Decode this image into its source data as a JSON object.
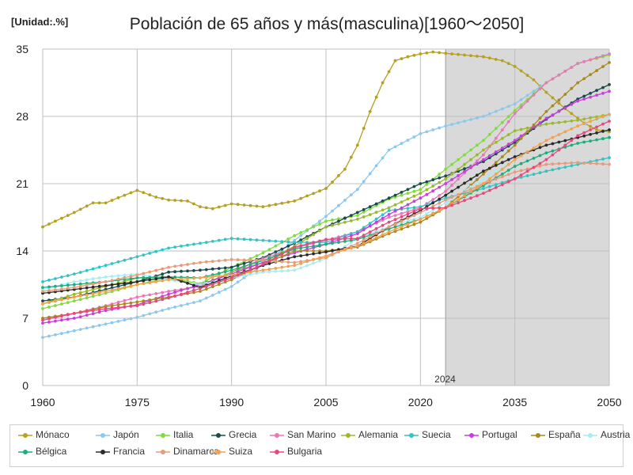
{
  "chart_data": {
    "type": "line",
    "title": "Población de 65 años y más(masculina)[1960〜2050]",
    "unit_label": "[Unidad:.%]",
    "xlabel": "",
    "ylabel": "",
    "xlim": [
      1960,
      2050
    ],
    "ylim": [
      0,
      35
    ],
    "x_ticks": [
      1960,
      1975,
      1990,
      2005,
      2020,
      2035,
      2050
    ],
    "y_ticks": [
      0,
      7,
      14,
      21,
      28,
      35
    ],
    "projection_start": 2024,
    "projection_label": "2024",
    "series": [
      {
        "name": "Mónaco",
        "color": "#b5a020",
        "points": [
          [
            1960,
            16.5
          ],
          [
            1965,
            18
          ],
          [
            1968,
            19
          ],
          [
            1970,
            19
          ],
          [
            1973,
            19.8
          ],
          [
            1975,
            20.3
          ],
          [
            1978,
            19.6
          ],
          [
            1980,
            19.3
          ],
          [
            1983,
            19.2
          ],
          [
            1985,
            18.6
          ],
          [
            1987,
            18.4
          ],
          [
            1990,
            18.9
          ],
          [
            1995,
            18.6
          ],
          [
            2000,
            19.2
          ],
          [
            2005,
            20.5
          ],
          [
            2008,
            22.5
          ],
          [
            2010,
            25
          ],
          [
            2012,
            28.5
          ],
          [
            2014,
            31.5
          ],
          [
            2016,
            33.8
          ],
          [
            2018,
            34.2
          ],
          [
            2020,
            34.5
          ],
          [
            2022,
            34.7
          ],
          [
            2025,
            34.5
          ],
          [
            2030,
            34.2
          ],
          [
            2033,
            33.8
          ],
          [
            2035,
            33.2
          ],
          [
            2038,
            31.8
          ],
          [
            2040,
            30.5
          ],
          [
            2043,
            28.8
          ],
          [
            2046,
            27.3
          ],
          [
            2048,
            26.6
          ],
          [
            2050,
            26.4
          ]
        ]
      },
      {
        "name": "Japón",
        "color": "#8cc8ee",
        "points": [
          [
            1960,
            5
          ],
          [
            1965,
            5.7
          ],
          [
            1970,
            6.4
          ],
          [
            1975,
            7.1
          ],
          [
            1980,
            8
          ],
          [
            1985,
            8.8
          ],
          [
            1990,
            10.3
          ],
          [
            1995,
            12.6
          ],
          [
            2000,
            15.1
          ],
          [
            2005,
            17.6
          ],
          [
            2010,
            20.4
          ],
          [
            2015,
            24.5
          ],
          [
            2020,
            26.2
          ],
          [
            2024,
            27
          ],
          [
            2030,
            28
          ],
          [
            2035,
            29.3
          ],
          [
            2040,
            31.5
          ],
          [
            2045,
            33.5
          ],
          [
            2050,
            34.5
          ]
        ]
      },
      {
        "name": "Italia",
        "color": "#7edc3c",
        "points": [
          [
            1960,
            8
          ],
          [
            1965,
            8.8
          ],
          [
            1970,
            9.6
          ],
          [
            1975,
            10.5
          ],
          [
            1980,
            11.2
          ],
          [
            1985,
            10.6
          ],
          [
            1990,
            12.3
          ],
          [
            1995,
            13.8
          ],
          [
            2000,
            15.6
          ],
          [
            2005,
            17.1
          ],
          [
            2010,
            17.7
          ],
          [
            2015,
            19.4
          ],
          [
            2020,
            20.4
          ],
          [
            2024,
            22.5
          ],
          [
            2030,
            25.5
          ],
          [
            2035,
            28.6
          ],
          [
            2040,
            31.5
          ],
          [
            2045,
            33.5
          ],
          [
            2050,
            34.4
          ]
        ]
      },
      {
        "name": "Grecia",
        "color": "#1a4a4a",
        "points": [
          [
            1960,
            8.8
          ],
          [
            1965,
            9.2
          ],
          [
            1970,
            10
          ],
          [
            1975,
            10.8
          ],
          [
            1980,
            11.8
          ],
          [
            1985,
            12
          ],
          [
            1990,
            12.3
          ],
          [
            1995,
            13.3
          ],
          [
            2000,
            14.8
          ],
          [
            2005,
            16.5
          ],
          [
            2010,
            18
          ],
          [
            2015,
            19.5
          ],
          [
            2020,
            21
          ],
          [
            2024,
            21.8
          ],
          [
            2030,
            23.3
          ],
          [
            2035,
            25.3
          ],
          [
            2040,
            27.7
          ],
          [
            2045,
            29.8
          ],
          [
            2050,
            31.3
          ]
        ]
      },
      {
        "name": "San Marino",
        "color": "#e67ab8",
        "points": [
          [
            1960,
            7
          ],
          [
            1965,
            7.5
          ],
          [
            1970,
            8.3
          ],
          [
            1975,
            9.2
          ],
          [
            1980,
            9.8
          ],
          [
            1985,
            10.3
          ],
          [
            1990,
            11.8
          ],
          [
            1995,
            13.2
          ],
          [
            2000,
            14.3
          ],
          [
            2005,
            15.1
          ],
          [
            2010,
            16
          ],
          [
            2015,
            17.5
          ],
          [
            2020,
            18.5
          ],
          [
            2024,
            20.2
          ],
          [
            2030,
            24
          ],
          [
            2035,
            28.3
          ],
          [
            2040,
            31.5
          ],
          [
            2045,
            33.5
          ],
          [
            2050,
            34.5
          ]
        ]
      },
      {
        "name": "Alemania",
        "color": "#9cb830",
        "points": [
          [
            1960,
            8.5
          ],
          [
            1965,
            9.5
          ],
          [
            1970,
            10.3
          ],
          [
            1975,
            11.2
          ],
          [
            1980,
            11.3
          ],
          [
            1985,
            10.4
          ],
          [
            1990,
            11.8
          ],
          [
            1995,
            12.8
          ],
          [
            2000,
            14.5
          ],
          [
            2005,
            16.5
          ],
          [
            2010,
            17.3
          ],
          [
            2015,
            18.5
          ],
          [
            2020,
            20
          ],
          [
            2024,
            21.5
          ],
          [
            2030,
            24.5
          ],
          [
            2035,
            26.5
          ],
          [
            2040,
            27.2
          ],
          [
            2045,
            27.6
          ],
          [
            2050,
            28.2
          ]
        ]
      },
      {
        "name": "Suecia",
        "color": "#30c4c4",
        "points": [
          [
            1960,
            10.8
          ],
          [
            1965,
            11.6
          ],
          [
            1970,
            12.5
          ],
          [
            1975,
            13.4
          ],
          [
            1980,
            14.3
          ],
          [
            1985,
            14.8
          ],
          [
            1990,
            15.3
          ],
          [
            1995,
            15.1
          ],
          [
            2000,
            14.9
          ],
          [
            2005,
            14.9
          ],
          [
            2010,
            16
          ],
          [
            2015,
            18.2
          ],
          [
            2020,
            18.6
          ],
          [
            2024,
            19.5
          ],
          [
            2030,
            20.5
          ],
          [
            2035,
            21.5
          ],
          [
            2040,
            22.3
          ],
          [
            2045,
            23
          ],
          [
            2050,
            23.7
          ]
        ]
      },
      {
        "name": "Portugal",
        "color": "#c83ce0",
        "points": [
          [
            1960,
            6.5
          ],
          [
            1965,
            7
          ],
          [
            1970,
            7.8
          ],
          [
            1975,
            8.4
          ],
          [
            1980,
            9.5
          ],
          [
            1985,
            10.5
          ],
          [
            1990,
            11.6
          ],
          [
            1995,
            12.8
          ],
          [
            2000,
            13.8
          ],
          [
            2005,
            14.7
          ],
          [
            2010,
            15.8
          ],
          [
            2015,
            17.8
          ],
          [
            2020,
            19.5
          ],
          [
            2024,
            21
          ],
          [
            2030,
            23.5
          ],
          [
            2035,
            25.5
          ],
          [
            2040,
            27.8
          ],
          [
            2045,
            29.6
          ],
          [
            2050,
            30.6
          ]
        ]
      },
      {
        "name": "España",
        "color": "#a88a1c",
        "points": [
          [
            1960,
            7
          ],
          [
            1965,
            7.5
          ],
          [
            1970,
            8.2
          ],
          [
            1975,
            8.7
          ],
          [
            1980,
            9.2
          ],
          [
            1985,
            9.8
          ],
          [
            1990,
            11
          ],
          [
            1995,
            12.6
          ],
          [
            2000,
            14
          ],
          [
            2005,
            14
          ],
          [
            2010,
            14.4
          ],
          [
            2015,
            15.8
          ],
          [
            2020,
            17
          ],
          [
            2024,
            18.5
          ],
          [
            2030,
            22
          ],
          [
            2035,
            25
          ],
          [
            2040,
            28.5
          ],
          [
            2045,
            31.5
          ],
          [
            2050,
            33.6
          ]
        ]
      },
      {
        "name": "Austria",
        "color": "#a8ecf4",
        "points": [
          [
            1960,
            10
          ],
          [
            1965,
            10.8
          ],
          [
            1970,
            11.3
          ],
          [
            1975,
            11.6
          ],
          [
            1980,
            11
          ],
          [
            1985,
            10.5
          ],
          [
            1990,
            11.2
          ],
          [
            1995,
            11.8
          ],
          [
            2000,
            12
          ],
          [
            2005,
            13.2
          ],
          [
            2010,
            15.3
          ],
          [
            2015,
            16.5
          ],
          [
            2020,
            17.5
          ],
          [
            2024,
            19
          ],
          [
            2030,
            21.5
          ],
          [
            2035,
            23.5
          ],
          [
            2040,
            25.5
          ],
          [
            2045,
            27
          ],
          [
            2050,
            28
          ]
        ]
      },
      {
        "name": "Bélgica",
        "color": "#1cae7a",
        "points": [
          [
            1960,
            10.2
          ],
          [
            1965,
            10.5
          ],
          [
            1970,
            10.8
          ],
          [
            1975,
            11.2
          ],
          [
            1980,
            11.3
          ],
          [
            1985,
            11.2
          ],
          [
            1990,
            12
          ],
          [
            1995,
            13
          ],
          [
            2000,
            14.2
          ],
          [
            2005,
            14.7
          ],
          [
            2010,
            15.2
          ],
          [
            2015,
            16.3
          ],
          [
            2020,
            17.3
          ],
          [
            2024,
            18.5
          ],
          [
            2030,
            20.8
          ],
          [
            2035,
            22.8
          ],
          [
            2040,
            24.2
          ],
          [
            2045,
            25.2
          ],
          [
            2050,
            25.8
          ]
        ]
      },
      {
        "name": "Francia",
        "color": "#2a2a2a",
        "points": [
          [
            1960,
            9.6
          ],
          [
            1965,
            10
          ],
          [
            1970,
            10.4
          ],
          [
            1975,
            10.8
          ],
          [
            1980,
            11.3
          ],
          [
            1985,
            10.2
          ],
          [
            1990,
            11.4
          ],
          [
            1995,
            12.5
          ],
          [
            2000,
            13.4
          ],
          [
            2005,
            13.9
          ],
          [
            2010,
            14.5
          ],
          [
            2015,
            16.5
          ],
          [
            2020,
            18.2
          ],
          [
            2024,
            19.8
          ],
          [
            2030,
            22.3
          ],
          [
            2035,
            23.8
          ],
          [
            2040,
            25
          ],
          [
            2045,
            25.8
          ],
          [
            2050,
            26.6
          ]
        ]
      },
      {
        "name": "Dinamarca",
        "color": "#e89a7a",
        "points": [
          [
            1960,
            9.8
          ],
          [
            1965,
            10.2
          ],
          [
            1970,
            10.8
          ],
          [
            1975,
            11.5
          ],
          [
            1980,
            12.3
          ],
          [
            1985,
            12.8
          ],
          [
            1990,
            13.1
          ],
          [
            1995,
            13
          ],
          [
            2000,
            12.8
          ],
          [
            2005,
            13.3
          ],
          [
            2010,
            14.8
          ],
          [
            2015,
            16.5
          ],
          [
            2020,
            18
          ],
          [
            2024,
            19.3
          ],
          [
            2030,
            21
          ],
          [
            2035,
            22.2
          ],
          [
            2040,
            23
          ],
          [
            2045,
            23.2
          ],
          [
            2050,
            23
          ]
        ]
      },
      {
        "name": "Suiza",
        "color": "#f4a050",
        "points": [
          [
            1960,
            8.5
          ],
          [
            1965,
            9.2
          ],
          [
            1970,
            9.8
          ],
          [
            1975,
            10.5
          ],
          [
            1980,
            11
          ],
          [
            1985,
            11.2
          ],
          [
            1990,
            11.5
          ],
          [
            1995,
            12
          ],
          [
            2000,
            12.5
          ],
          [
            2005,
            13.5
          ],
          [
            2010,
            14.5
          ],
          [
            2015,
            16
          ],
          [
            2020,
            17.3
          ],
          [
            2024,
            18.5
          ],
          [
            2030,
            21
          ],
          [
            2035,
            23.5
          ],
          [
            2040,
            25.5
          ],
          [
            2045,
            27
          ],
          [
            2050,
            28.2
          ]
        ]
      },
      {
        "name": "Bulgaria",
        "color": "#e84880",
        "points": [
          [
            1960,
            6.8
          ],
          [
            1965,
            7.5
          ],
          [
            1970,
            8
          ],
          [
            1975,
            8.3
          ],
          [
            1980,
            9.1
          ],
          [
            1985,
            10.1
          ],
          [
            1990,
            11.2
          ],
          [
            1995,
            12.6
          ],
          [
            2000,
            14.4
          ],
          [
            2005,
            15.2
          ],
          [
            2010,
            15.3
          ],
          [
            2015,
            17
          ],
          [
            2020,
            18.4
          ],
          [
            2024,
            18.5
          ],
          [
            2030,
            20
          ],
          [
            2035,
            21.5
          ],
          [
            2040,
            23.5
          ],
          [
            2045,
            26
          ],
          [
            2050,
            27.5
          ]
        ]
      }
    ]
  }
}
